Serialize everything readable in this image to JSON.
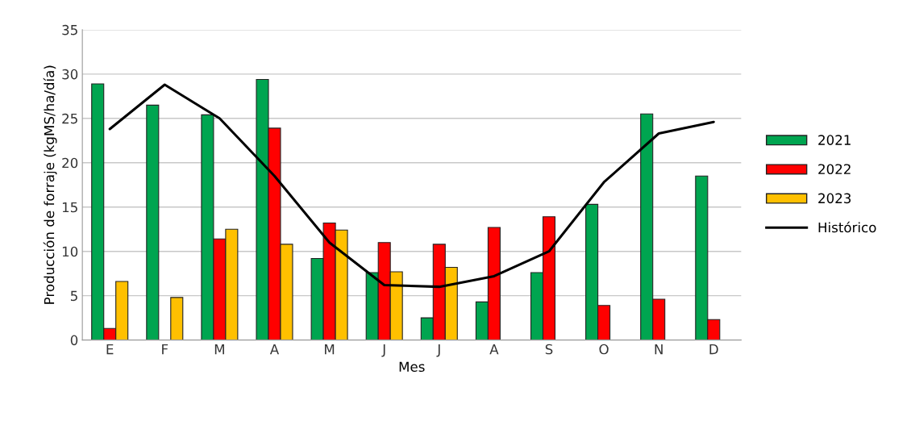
{
  "chart_data": {
    "type": "bar",
    "xlabel": "Mes",
    "ylabel": "Producción de forraje (kgMS/ha/día)",
    "categories": [
      "E",
      "F",
      "M",
      "A",
      "M",
      "J",
      "J",
      "A",
      "S",
      "O",
      "N",
      "D"
    ],
    "series": [
      {
        "name": "2021",
        "color": "#00a550",
        "values": [
          28.9,
          26.5,
          25.4,
          29.4,
          9.2,
          7.6,
          2.5,
          4.3,
          7.6,
          15.3,
          25.5,
          18.5
        ]
      },
      {
        "name": "2022",
        "color": "#ff0000",
        "values": [
          1.3,
          null,
          11.4,
          23.9,
          13.2,
          11.0,
          10.8,
          12.7,
          13.9,
          3.9,
          4.6,
          2.3
        ]
      },
      {
        "name": "2023",
        "color": "#ffc000",
        "values": [
          6.6,
          4.8,
          12.5,
          10.8,
          12.4,
          7.7,
          8.2,
          null,
          null,
          null,
          null,
          null
        ]
      },
      {
        "name": "Histórico",
        "color": "#000000",
        "type": "line",
        "values": [
          23.8,
          28.8,
          25.0,
          18.5,
          11.0,
          6.2,
          6.0,
          7.2,
          10.0,
          17.8,
          23.3,
          24.6
        ]
      }
    ],
    "ylim": [
      0,
      35
    ],
    "yticks": [
      0,
      5,
      10,
      15,
      20,
      25,
      30,
      35
    ],
    "grid": "y",
    "legend": "right"
  }
}
